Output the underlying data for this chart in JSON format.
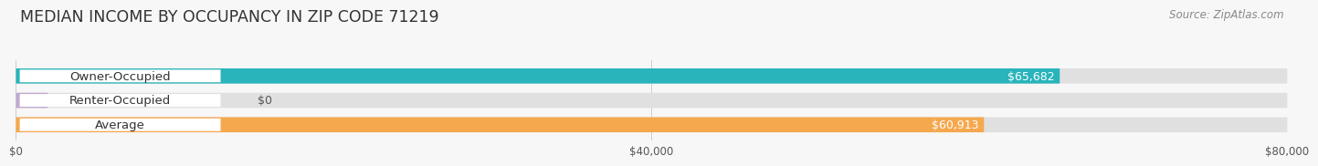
{
  "title": "MEDIAN INCOME BY OCCUPANCY IN ZIP CODE 71219",
  "source": "Source: ZipAtlas.com",
  "categories": [
    "Owner-Occupied",
    "Renter-Occupied",
    "Average"
  ],
  "values": [
    65682,
    0,
    60913
  ],
  "bar_colors": [
    "#29b4bb",
    "#c0aad0",
    "#f5a84e"
  ],
  "bar_labels": [
    "$65,682",
    "$0",
    "$60,913"
  ],
  "xlim": [
    0,
    80000
  ],
  "xticks": [
    0,
    40000,
    80000
  ],
  "xtick_labels": [
    "$0",
    "$40,000",
    "$80,000"
  ],
  "background_color": "#f7f7f7",
  "bar_bg_color": "#e0e0e0",
  "title_fontsize": 12.5,
  "source_fontsize": 8.5,
  "label_fontsize": 9.5,
  "value_fontsize": 9
}
